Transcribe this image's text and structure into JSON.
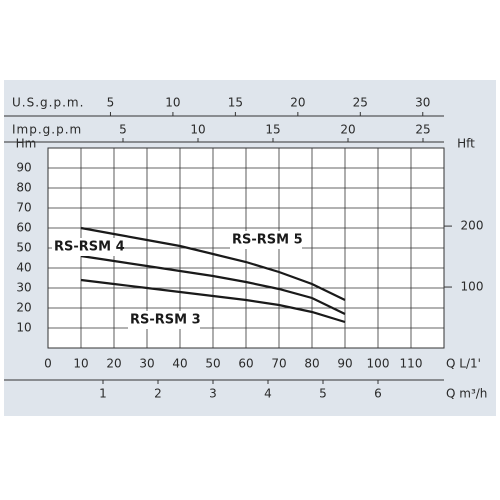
{
  "chart_data": {
    "type": "line",
    "x_axis_label": "Q L/1'",
    "xlim": [
      0,
      120
    ],
    "xticks": [
      0,
      10,
      20,
      30,
      40,
      50,
      60,
      70,
      80,
      90,
      100,
      110
    ],
    "y_axis_label": "Hm",
    "ylim": [
      0,
      100
    ],
    "yticks": [
      10,
      20,
      30,
      40,
      50,
      60,
      70,
      80,
      90
    ],
    "y2_axis_label": "Hft",
    "y2lim": [
      0,
      328.1
    ],
    "y2ticks": [
      100,
      200
    ],
    "top_axes": [
      {
        "label": "U.S.g.p.m.",
        "lim": [
          0,
          31.7
        ],
        "ticks": [
          5,
          10,
          15,
          20,
          25,
          30
        ]
      },
      {
        "label": "Imp.g.p.m",
        "lim": [
          0,
          26.4
        ],
        "ticks": [
          5,
          10,
          15,
          20,
          25
        ]
      }
    ],
    "bottom_axis2": {
      "label": "Q m³/h",
      "lim": [
        0,
        7.2
      ],
      "ticks": [
        1,
        2,
        3,
        4,
        5,
        6
      ]
    },
    "grid": true,
    "x": [
      10,
      20,
      30,
      40,
      50,
      60,
      70,
      80,
      90
    ],
    "series": [
      {
        "name": "RS-RSM 5",
        "color": "#1a1a1a",
        "values": [
          60,
          57,
          54,
          51,
          47,
          43,
          38,
          32,
          24
        ]
      },
      {
        "name": "RS-RSM 4",
        "color": "#1a1a1a",
        "values": [
          46,
          43.5,
          41,
          38.5,
          36,
          33,
          29.5,
          25,
          17
        ]
      },
      {
        "name": "RS-RSM 3",
        "color": "#1a1a1a",
        "values": [
          34,
          32,
          30,
          28,
          26,
          24,
          21.5,
          18,
          13
        ]
      }
    ]
  }
}
